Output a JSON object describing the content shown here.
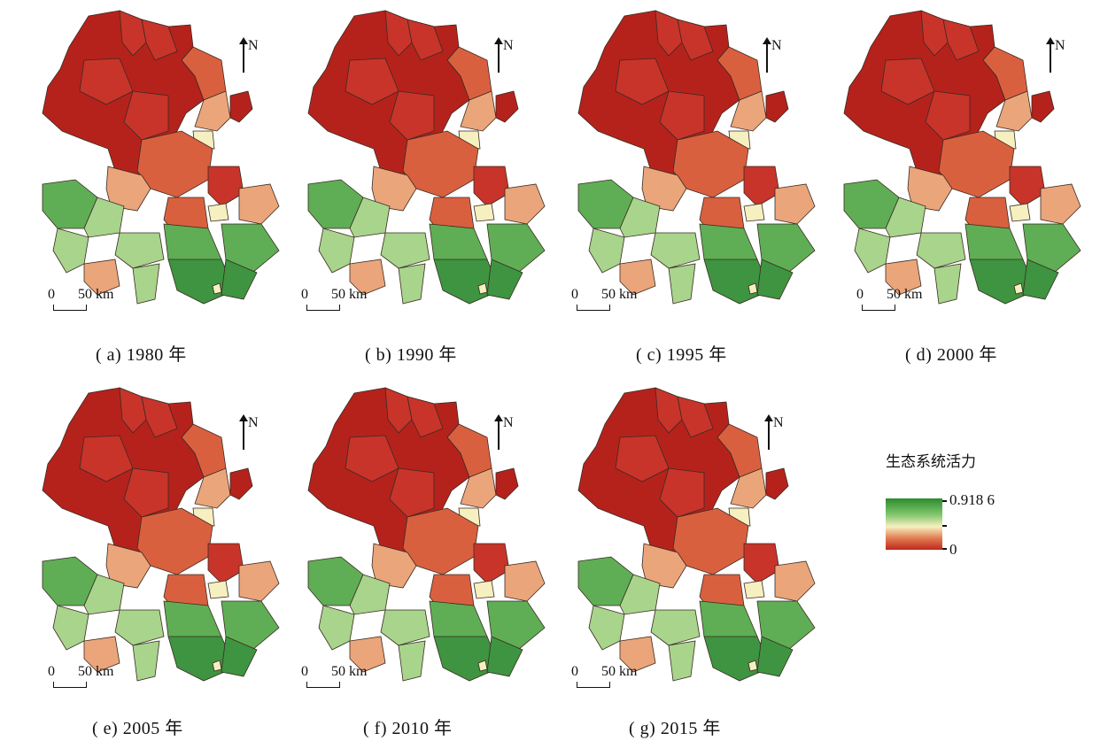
{
  "panels": [
    {
      "letter": "a",
      "caption": "( a) 1980 年"
    },
    {
      "letter": "b",
      "caption": "( b) 1990 年"
    },
    {
      "letter": "c",
      "caption": "( c) 1995 年"
    },
    {
      "letter": "d",
      "caption": "( d) 2000 年"
    },
    {
      "letter": "e",
      "caption": "( e) 2005 年"
    },
    {
      "letter": "f",
      "caption": "( f) 2010 年"
    },
    {
      "letter": "g",
      "caption": "( g) 2015 年"
    }
  ],
  "north_label": "N",
  "scalebar": {
    "zero": "0",
    "distance": "50 km"
  },
  "legend": {
    "title": "生态系统活力",
    "max_label": "0.918 6",
    "min_label": "0",
    "colors": {
      "high": "#2e8b2e",
      "mid": "#f7f0c0",
      "low": "#c0271f"
    }
  },
  "region_colors": {
    "north_dark_red": "#b5221c",
    "red": "#c8342a",
    "orange_red": "#d9603f",
    "light_orange": "#eba57a",
    "pale_yellow": "#f6efbf",
    "light_green": "#a8d48c",
    "green": "#5fae55",
    "dark_green": "#3e9440"
  }
}
